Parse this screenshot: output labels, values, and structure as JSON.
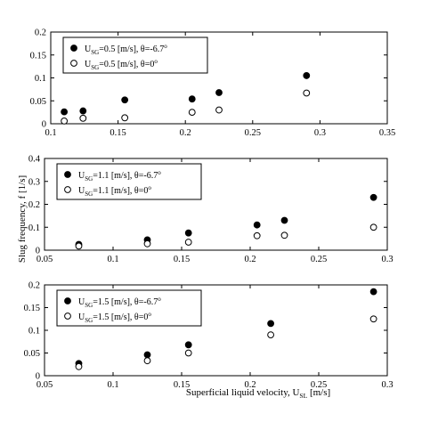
{
  "figure": {
    "ylabel": "Slug frequency, f [1/s]",
    "xlabel": "Superficial liquid velocity, U",
    "xlabel_sub": "SL",
    "xlabel_unit": " [m/s]",
    "marker_colors": {
      "filled": "#000000",
      "open": "#ffffff"
    }
  },
  "chart_data": [
    {
      "type": "scatter",
      "xlim": [
        0.1,
        0.35
      ],
      "ylim": [
        0,
        0.2
      ],
      "xticks": [
        "0.1",
        "0.15",
        "0.2",
        "0.25",
        "0.3",
        "0.35"
      ],
      "yticks": [
        "0",
        "0.05",
        "0.1",
        "0.15",
        "0.2"
      ],
      "legend_position": "top-left",
      "series": [
        {
          "name": "U_SG=0.5 [m/s], θ=-6.7°",
          "legend": {
            "pre": "U",
            "sub": "SG",
            "post": "=0.5 [m/s], θ=-6.7",
            "sup": "o"
          },
          "marker": "filled",
          "x": [
            0.11,
            0.124,
            0.155,
            0.205,
            0.225,
            0.29
          ],
          "y": [
            0.026,
            0.028,
            0.052,
            0.054,
            0.068,
            0.105
          ]
        },
        {
          "name": "U_SG=0.5 [m/s], θ=0°",
          "legend": {
            "pre": "U",
            "sub": "SG",
            "post": "=0.5 [m/s], θ=0",
            "sup": "o"
          },
          "marker": "open",
          "x": [
            0.11,
            0.124,
            0.155,
            0.205,
            0.225,
            0.29
          ],
          "y": [
            0.006,
            0.012,
            0.013,
            0.025,
            0.03,
            0.067
          ]
        }
      ]
    },
    {
      "type": "scatter",
      "xlim": [
        0.05,
        0.3
      ],
      "ylim": [
        0,
        0.4
      ],
      "xticks": [
        "0.05",
        "0.1",
        "0.15",
        "0.2",
        "0.25",
        "0.3"
      ],
      "yticks": [
        "0",
        "0.1",
        "0.2",
        "0.3",
        "0.4"
      ],
      "legend_position": "top-left",
      "series": [
        {
          "name": "U_SG=1.1 [m/s], θ=-6.7°",
          "legend": {
            "pre": "U",
            "sub": "SG",
            "post": "=1.1 [m/s], θ=-6.7",
            "sup": "o"
          },
          "marker": "filled",
          "x": [
            0.075,
            0.125,
            0.155,
            0.205,
            0.225,
            0.29
          ],
          "y": [
            0.025,
            0.045,
            0.075,
            0.11,
            0.13,
            0.23
          ]
        },
        {
          "name": "U_SG=1.1 [m/s], θ=0°",
          "legend": {
            "pre": "U",
            "sub": "SG",
            "post": "=1.1 [m/s], θ=0",
            "sup": "o"
          },
          "marker": "open",
          "x": [
            0.075,
            0.125,
            0.155,
            0.205,
            0.225,
            0.29
          ],
          "y": [
            0.018,
            0.028,
            0.035,
            0.063,
            0.065,
            0.1
          ]
        }
      ]
    },
    {
      "type": "scatter",
      "xlim": [
        0.05,
        0.3
      ],
      "ylim": [
        0,
        0.2
      ],
      "xticks": [
        "0.05",
        "0.1",
        "0.15",
        "0.2",
        "0.25",
        "0.3"
      ],
      "yticks": [
        "0",
        "0.05",
        "0.1",
        "0.15",
        "0.2"
      ],
      "legend_position": "top-left",
      "series": [
        {
          "name": "U_SG=1.5 [m/s], θ=-6.7°",
          "legend": {
            "pre": "U",
            "sub": "SG",
            "post": "=1.5 [m/s], θ=-6.7",
            "sup": "o"
          },
          "marker": "filled",
          "x": [
            0.075,
            0.125,
            0.155,
            0.215,
            0.29
          ],
          "y": [
            0.027,
            0.046,
            0.068,
            0.115,
            0.185
          ]
        },
        {
          "name": "U_SG=1.5 [m/s], θ=0°",
          "legend": {
            "pre": "U",
            "sub": "SG",
            "post": "=1.5 [m/s], θ=0",
            "sup": "o"
          },
          "marker": "open",
          "x": [
            0.075,
            0.125,
            0.155,
            0.215,
            0.29
          ],
          "y": [
            0.02,
            0.033,
            0.05,
            0.09,
            0.125
          ]
        }
      ]
    }
  ]
}
